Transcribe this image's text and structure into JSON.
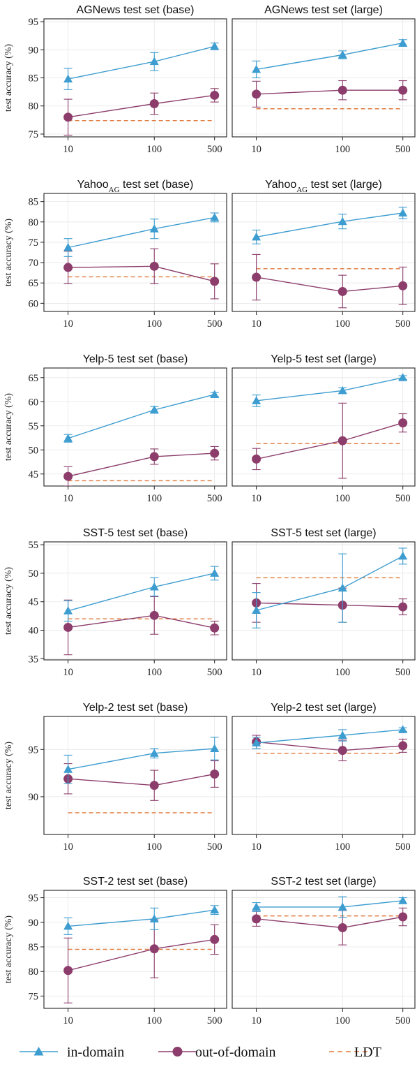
{
  "colors": {
    "in_domain": "#3d9dd0",
    "out_of_domain": "#8c3d6b",
    "ldt": "#e07a3c",
    "grid": "#e6e6e6",
    "axis": "#222222"
  },
  "legend": [
    {
      "key": "in_domain",
      "label": "in-domain",
      "marker": "triangle-icon"
    },
    {
      "key": "out_of_domain",
      "label": "out-of-domain",
      "marker": "circle-icon"
    },
    {
      "key": "ldt",
      "label": "LDT",
      "marker": "dashed-line-icon"
    }
  ],
  "chart_data": [
    {
      "type": "line",
      "title": "AGNews test set (base)",
      "title_main": "AGNews test set (base)",
      "title_sub": "",
      "title_rest": "",
      "ylabel": "test accuracy (%)",
      "x": [
        10,
        100,
        500
      ],
      "x_ticks": [
        "10",
        "100",
        "500"
      ],
      "ylim": [
        74.5,
        95.5
      ],
      "yticks": [
        75,
        80,
        85,
        90,
        95
      ],
      "grid": true,
      "series": [
        {
          "name": "in-domain",
          "values": [
            84.8,
            87.9,
            90.6
          ],
          "err": [
            1.9,
            1.6,
            0.6
          ]
        },
        {
          "name": "out-of-domain",
          "values": [
            78.0,
            80.4,
            81.9
          ],
          "err": [
            3.2,
            1.9,
            1.2
          ]
        },
        {
          "name": "LDT",
          "values": [
            77.4,
            77.4,
            77.4
          ]
        }
      ]
    },
    {
      "type": "line",
      "title": "AGNews test set (large)",
      "title_main": "AGNews test set (large)",
      "title_sub": "",
      "title_rest": "",
      "ylabel": "",
      "x": [
        10,
        100,
        500
      ],
      "x_ticks": [
        "10",
        "100",
        "500"
      ],
      "ylim": [
        74.5,
        95.5
      ],
      "yticks": [],
      "grid": true,
      "series": [
        {
          "name": "in-domain",
          "values": [
            86.5,
            89.1,
            91.2
          ],
          "err": [
            1.5,
            0.7,
            0.6
          ]
        },
        {
          "name": "out-of-domain",
          "values": [
            82.1,
            82.8,
            82.8
          ],
          "err": [
            2.3,
            1.7,
            1.7
          ]
        },
        {
          "name": "LDT",
          "values": [
            79.5,
            79.5,
            79.5
          ]
        }
      ]
    },
    {
      "type": "line",
      "title": "YahooAG test set (base)",
      "title_main": "Yahoo",
      "title_sub": "AG",
      "title_rest": " test set (base)",
      "ylabel": "test accuracy (%)",
      "x": [
        10,
        100,
        500
      ],
      "x_ticks": [
        "10",
        "100",
        "500"
      ],
      "ylim": [
        58,
        87
      ],
      "yticks": [
        60,
        65,
        70,
        75,
        80,
        85
      ],
      "grid": true,
      "series": [
        {
          "name": "in-domain",
          "values": [
            73.7,
            78.3,
            81.1
          ],
          "err": [
            2.2,
            2.4,
            1.1
          ]
        },
        {
          "name": "out-of-domain",
          "values": [
            68.8,
            69.1,
            65.4
          ],
          "err": [
            4.0,
            4.3,
            4.3
          ]
        },
        {
          "name": "LDT",
          "values": [
            66.5,
            66.5,
            66.5
          ]
        }
      ]
    },
    {
      "type": "line",
      "title": "YahooAG test set (large)",
      "title_main": "Yahoo",
      "title_sub": "AG",
      "title_rest": " test set (large)",
      "ylabel": "",
      "x": [
        10,
        100,
        500
      ],
      "x_ticks": [
        "10",
        "100",
        "500"
      ],
      "ylim": [
        58,
        87
      ],
      "yticks": [],
      "grid": true,
      "series": [
        {
          "name": "in-domain",
          "values": [
            76.3,
            80.1,
            82.2
          ],
          "err": [
            1.7,
            1.8,
            1.4
          ]
        },
        {
          "name": "out-of-domain",
          "values": [
            66.4,
            62.9,
            64.3
          ],
          "err": [
            5.6,
            4.0,
            4.6
          ]
        },
        {
          "name": "LDT",
          "values": [
            68.5,
            68.5,
            68.5
          ]
        }
      ]
    },
    {
      "type": "line",
      "title": "Yelp-5 test set (base)",
      "title_main": "Yelp-5 test set (base)",
      "title_sub": "",
      "title_rest": "",
      "ylabel": "test accuracy (%)",
      "x": [
        10,
        100,
        500
      ],
      "x_ticks": [
        "10",
        "100",
        "500"
      ],
      "ylim": [
        42.5,
        67
      ],
      "yticks": [
        45,
        50,
        55,
        60,
        65
      ],
      "grid": true,
      "series": [
        {
          "name": "in-domain",
          "values": [
            52.4,
            58.3,
            61.5
          ],
          "err": [
            0.8,
            0.7,
            0.4
          ]
        },
        {
          "name": "out-of-domain",
          "values": [
            44.5,
            48.6,
            49.3
          ],
          "err": [
            2.0,
            1.6,
            1.4
          ]
        },
        {
          "name": "LDT",
          "values": [
            43.6,
            43.6,
            43.6
          ]
        }
      ]
    },
    {
      "type": "line",
      "title": "Yelp-5 test set (large)",
      "title_main": "Yelp-5 test set (large)",
      "title_sub": "",
      "title_rest": "",
      "ylabel": "",
      "x": [
        10,
        100,
        500
      ],
      "x_ticks": [
        "10",
        "100",
        "500"
      ],
      "ylim": [
        42.5,
        67
      ],
      "yticks": [],
      "grid": true,
      "series": [
        {
          "name": "in-domain",
          "values": [
            60.2,
            62.3,
            65.0
          ],
          "err": [
            1.2,
            0.6,
            0.4
          ]
        },
        {
          "name": "out-of-domain",
          "values": [
            48.1,
            51.9,
            55.6
          ],
          "err": [
            2.2,
            7.8,
            1.9
          ]
        },
        {
          "name": "LDT",
          "values": [
            51.3,
            51.3,
            51.3
          ]
        }
      ]
    },
    {
      "type": "line",
      "title": "SST-5 test set (base)",
      "title_main": "SST-5 test set (base)",
      "title_sub": "",
      "title_rest": "",
      "ylabel": "test accuracy (%)",
      "x": [
        10,
        100,
        500
      ],
      "x_ticks": [
        "10",
        "100",
        "500"
      ],
      "ylim": [
        34.8,
        55.5
      ],
      "yticks": [
        35,
        40,
        45,
        50,
        55
      ],
      "grid": true,
      "series": [
        {
          "name": "in-domain",
          "values": [
            43.4,
            47.6,
            50.0
          ],
          "err": [
            1.8,
            1.6,
            1.2
          ]
        },
        {
          "name": "out-of-domain",
          "values": [
            40.5,
            42.6,
            40.4
          ],
          "err": [
            4.8,
            3.3,
            1.2
          ]
        },
        {
          "name": "LDT",
          "values": [
            42.0,
            42.0,
            42.0
          ]
        }
      ]
    },
    {
      "type": "line",
      "title": "SST-5 test set (large)",
      "title_main": "SST-5 test set (large)",
      "title_sub": "",
      "title_rest": "",
      "ylabel": "",
      "x": [
        10,
        100,
        500
      ],
      "x_ticks": [
        "10",
        "100",
        "500"
      ],
      "ylim": [
        34.8,
        55.5
      ],
      "yticks": [],
      "grid": true,
      "series": [
        {
          "name": "in-domain",
          "values": [
            43.5,
            47.4,
            53.0
          ],
          "err": [
            3.1,
            6.0,
            1.4
          ]
        },
        {
          "name": "out-of-domain",
          "values": [
            44.8,
            44.4,
            44.1
          ],
          "err": [
            3.4,
            3.0,
            1.4
          ]
        },
        {
          "name": "LDT",
          "values": [
            49.2,
            49.2,
            49.2
          ]
        }
      ]
    },
    {
      "type": "line",
      "title": "Yelp-2 test set (base)",
      "title_main": "Yelp-2 test set (base)",
      "title_sub": "",
      "title_rest": "",
      "ylabel": "test accuracy (%)",
      "x": [
        10,
        100,
        500
      ],
      "x_ticks": [
        "10",
        "100",
        "500"
      ],
      "ylim": [
        86.0,
        98.5
      ],
      "yticks": [
        90,
        95
      ],
      "grid": true,
      "series": [
        {
          "name": "in-domain",
          "values": [
            92.9,
            94.6,
            95.1
          ],
          "err": [
            1.5,
            0.5,
            1.2
          ]
        },
        {
          "name": "out-of-domain",
          "values": [
            91.9,
            91.2,
            92.4
          ],
          "err": [
            1.6,
            1.6,
            1.4
          ]
        },
        {
          "name": "LDT",
          "values": [
            88.3,
            88.3,
            88.3
          ]
        }
      ]
    },
    {
      "type": "line",
      "title": "Yelp-2 test set (large)",
      "title_main": "Yelp-2 test set (large)",
      "title_sub": "",
      "title_rest": "",
      "ylabel": "",
      "x": [
        10,
        100,
        500
      ],
      "x_ticks": [
        "10",
        "100",
        "500"
      ],
      "ylim": [
        86.0,
        98.5
      ],
      "yticks": [],
      "grid": true,
      "series": [
        {
          "name": "in-domain",
          "values": [
            95.7,
            96.5,
            97.1
          ],
          "err": [
            0.6,
            0.6,
            0.2
          ]
        },
        {
          "name": "out-of-domain",
          "values": [
            95.8,
            94.9,
            95.4
          ],
          "err": [
            0.7,
            1.1,
            0.7
          ]
        },
        {
          "name": "LDT",
          "values": [
            94.6,
            94.6,
            94.6
          ]
        }
      ]
    },
    {
      "type": "line",
      "title": "SST-2 test set (base)",
      "title_main": "SST-2 test set (base)",
      "title_sub": "",
      "title_rest": "",
      "ylabel": "test accuracy (%)",
      "x": [
        10,
        100,
        500
      ],
      "x_ticks": [
        "10",
        "100",
        "500"
      ],
      "ylim": [
        72.5,
        96.5
      ],
      "yticks": [
        75,
        80,
        85,
        90,
        95
      ],
      "grid": true,
      "series": [
        {
          "name": "in-domain",
          "values": [
            89.2,
            90.7,
            92.5
          ],
          "err": [
            1.7,
            2.2,
            0.9
          ]
        },
        {
          "name": "out-of-domain",
          "values": [
            80.2,
            84.6,
            86.5
          ],
          "err": [
            6.6,
            5.9,
            3.0
          ]
        },
        {
          "name": "LDT",
          "values": [
            84.5,
            84.5,
            84.5
          ]
        }
      ]
    },
    {
      "type": "line",
      "title": "SST-2 test set (large)",
      "title_main": "SST-2 test set (large)",
      "title_sub": "",
      "title_rest": "",
      "ylabel": "",
      "x": [
        10,
        100,
        500
      ],
      "x_ticks": [
        "10",
        "100",
        "500"
      ],
      "ylim": [
        72.5,
        96.5
      ],
      "yticks": [],
      "grid": true,
      "series": [
        {
          "name": "in-domain",
          "values": [
            93.1,
            93.1,
            94.4
          ],
          "err": [
            0.9,
            2.1,
            0.6
          ]
        },
        {
          "name": "out-of-domain",
          "values": [
            90.7,
            88.9,
            91.1
          ],
          "err": [
            1.5,
            3.5,
            1.8
          ]
        },
        {
          "name": "LDT",
          "values": [
            91.3,
            91.3,
            91.3
          ]
        }
      ]
    }
  ]
}
